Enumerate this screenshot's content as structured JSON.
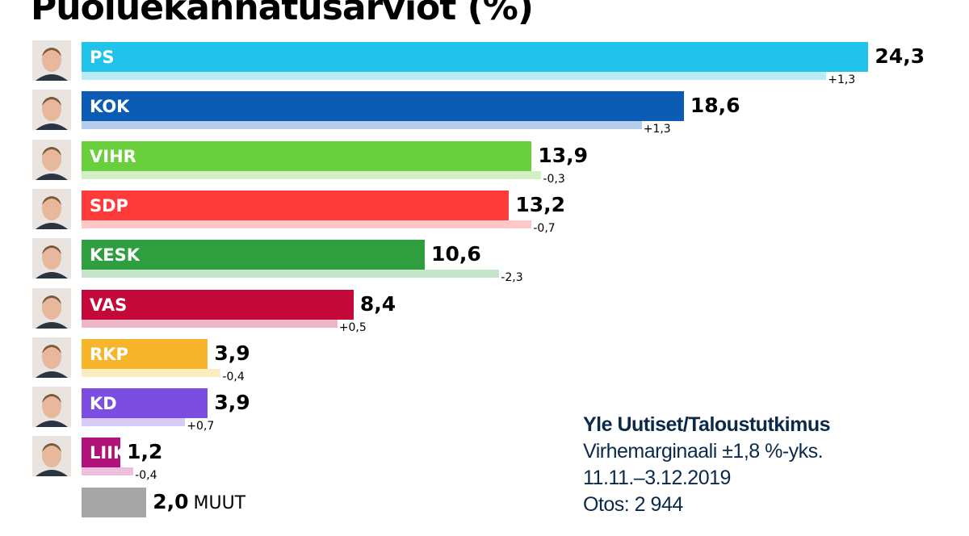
{
  "chart_data": {
    "type": "bar",
    "orientation": "horizontal",
    "title": "Puoluekannatusarviot (%)",
    "categories": [
      "PS",
      "KOK",
      "VIHR",
      "SDP",
      "KESK",
      "VAS",
      "RKP",
      "KD",
      "LIIK",
      "MUUT"
    ],
    "series": [
      {
        "values": [
          24.3,
          18.6,
          13.9,
          13.2,
          10.6,
          8.4,
          3.9,
          3.9,
          1.2,
          2.0
        ]
      },
      {
        "values": [
          23.0,
          17.3,
          14.2,
          13.9,
          12.9,
          7.9,
          4.3,
          3.2,
          1.6,
          null
        ]
      }
    ],
    "value_labels": [
      "24,3",
      "18,6",
      "13,9",
      "13,2",
      "10,6",
      "8,4",
      "3,9",
      "3,9",
      "1,2",
      "2,0"
    ],
    "change_labels": [
      "+1,3",
      "+1,3",
      "-0,3",
      "-0,7",
      "-2,3",
      "+0,5",
      "-0,4",
      "+0,7",
      "-0,4",
      ""
    ],
    "colors": [
      "#22c3ea",
      "#0c5bb5",
      "#6acf3c",
      "#ff3a3a",
      "#2f9e3f",
      "#c4083a",
      "#f7b52b",
      "#7b4de0",
      "#b0137a",
      "#a6a6a6"
    ],
    "prev_colors": [
      "#bcebf8",
      "#b6cdec",
      "#d2f0c4",
      "#ffc8c8",
      "#c6e6cb",
      "#edb7c6",
      "#fdecc2",
      "#d8cbf7",
      "#eec0de",
      ""
    ],
    "xlim": [
      0,
      25
    ]
  },
  "source": {
    "title": "Yle Uutiset/Taloustutkimus",
    "margin": "Virhemarginaali ±1,8 %-yks.",
    "dates": "11.11.–3.12.2019",
    "sample": "Otos: 2 944"
  }
}
